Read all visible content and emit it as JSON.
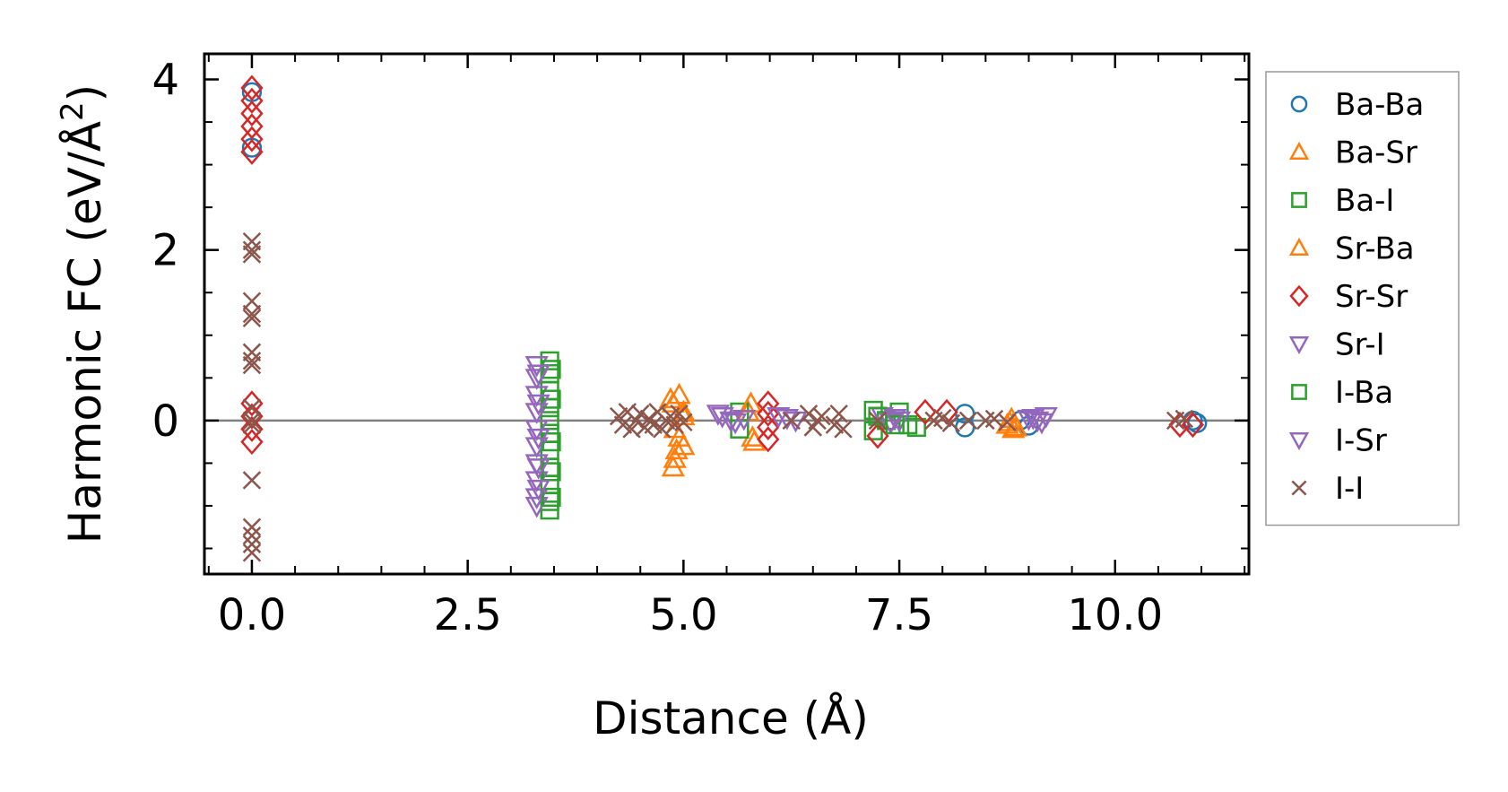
{
  "chart_data": {
    "type": "scatter",
    "xlabel": "Distance (Å)",
    "ylabel_main": "Harmonic FC (eV/Å",
    "ylabel_sup": "2",
    "ylabel_close": ")",
    "xlim": [
      -0.55,
      11.55
    ],
    "ylim": [
      -1.8,
      4.3
    ],
    "xticks": [
      0.0,
      2.5,
      5.0,
      7.5,
      10.0
    ],
    "xtick_labels": [
      "0.0",
      "2.5",
      "5.0",
      "7.5",
      "10.0"
    ],
    "yticks": [
      0,
      2,
      4
    ],
    "ytick_labels": [
      "0",
      "2",
      "4"
    ],
    "reference_line_y": 0,
    "legend_position": "outside-right",
    "series": [
      {
        "name": "Ba-Ba",
        "marker": "circle-open",
        "color": "#1f77b4",
        "points": [
          [
            0.0,
            3.2
          ],
          [
            0.0,
            3.85
          ],
          [
            8.26,
            0.08
          ],
          [
            8.26,
            -0.08
          ],
          [
            8.9,
            0.0
          ],
          [
            9.0,
            -0.06
          ],
          [
            10.9,
            0.0
          ],
          [
            10.95,
            -0.03
          ]
        ]
      },
      {
        "name": "Ba-Sr",
        "marker": "triangle-up-open",
        "color": "#ff7f0e",
        "points": [
          [
            4.85,
            0.25
          ],
          [
            4.9,
            -0.1
          ],
          [
            4.92,
            -0.35
          ],
          [
            4.88,
            -0.55
          ],
          [
            4.95,
            0.3
          ],
          [
            5.0,
            0.1
          ],
          [
            5.0,
            -0.3
          ],
          [
            5.75,
            0.1
          ],
          [
            5.8,
            -0.2
          ],
          [
            8.75,
            -0.05
          ],
          [
            8.8,
            0.02
          ],
          [
            8.85,
            -0.08
          ]
        ]
      },
      {
        "name": "Ba-I",
        "marker": "square-open",
        "color": "#2ca02c",
        "points": [
          [
            3.45,
            0.7
          ],
          [
            3.45,
            0.55
          ],
          [
            3.45,
            0.35
          ],
          [
            3.45,
            0.15
          ],
          [
            3.45,
            0.0
          ],
          [
            3.45,
            -0.15
          ],
          [
            3.45,
            -0.35
          ],
          [
            3.45,
            -0.55
          ],
          [
            3.45,
            -0.75
          ],
          [
            3.45,
            -0.95
          ],
          [
            3.45,
            -1.05
          ],
          [
            5.65,
            0.1
          ],
          [
            5.65,
            -0.1
          ],
          [
            7.2,
            0.12
          ],
          [
            7.2,
            -0.12
          ],
          [
            7.35,
            0.0
          ],
          [
            7.5,
            0.1
          ],
          [
            7.6,
            -0.05
          ],
          [
            7.7,
            -0.08
          ]
        ]
      },
      {
        "name": "Sr-Ba",
        "marker": "triangle-up-open",
        "color": "#ff7f0e",
        "points": [
          [
            4.88,
            0.2
          ],
          [
            4.95,
            -0.2
          ],
          [
            4.9,
            -0.45
          ],
          [
            5.0,
            0.05
          ],
          [
            5.78,
            0.2
          ],
          [
            5.82,
            -0.25
          ],
          [
            8.78,
            -0.02
          ],
          [
            8.82,
            -0.1
          ]
        ]
      },
      {
        "name": "Sr-Sr",
        "marker": "diamond-open",
        "color": "#d62728",
        "points": [
          [
            0.0,
            3.9
          ],
          [
            0.0,
            3.75
          ],
          [
            0.0,
            3.6
          ],
          [
            0.0,
            3.45
          ],
          [
            0.0,
            3.3
          ],
          [
            0.0,
            3.15
          ],
          [
            0.0,
            0.2
          ],
          [
            0.0,
            0.05
          ],
          [
            0.0,
            -0.1
          ],
          [
            0.0,
            -0.25
          ],
          [
            5.98,
            0.2
          ],
          [
            5.98,
            0.08
          ],
          [
            5.98,
            -0.08
          ],
          [
            5.98,
            -0.22
          ],
          [
            7.25,
            -0.18
          ],
          [
            7.8,
            0.1
          ],
          [
            8.05,
            0.1
          ],
          [
            10.75,
            -0.05
          ],
          [
            10.9,
            -0.05
          ]
        ]
      },
      {
        "name": "Sr-I",
        "marker": "triangle-down-open",
        "color": "#9467bd",
        "points": [
          [
            3.3,
            0.65
          ],
          [
            3.3,
            0.5
          ],
          [
            3.3,
            0.3
          ],
          [
            3.3,
            0.1
          ],
          [
            3.3,
            -0.1
          ],
          [
            3.3,
            -0.3
          ],
          [
            3.3,
            -0.5
          ],
          [
            3.3,
            -0.7
          ],
          [
            3.3,
            -0.9
          ],
          [
            3.3,
            -1.0
          ],
          [
            5.4,
            0.08
          ],
          [
            5.55,
            0.0
          ],
          [
            5.7,
            0.02
          ],
          [
            6.1,
            0.05
          ],
          [
            6.3,
            0.0
          ],
          [
            7.3,
            0.05
          ],
          [
            7.4,
            -0.02
          ],
          [
            7.5,
            0.0
          ],
          [
            9.0,
            0.02
          ],
          [
            9.1,
            0.0
          ],
          [
            9.2,
            0.05
          ]
        ]
      },
      {
        "name": "I-Ba",
        "marker": "square-open",
        "color": "#2ca02c",
        "points": [
          [
            3.47,
            0.6
          ],
          [
            3.47,
            0.25
          ],
          [
            3.47,
            -0.25
          ],
          [
            3.47,
            -0.6
          ],
          [
            3.47,
            -0.9
          ],
          [
            7.25,
            0.05
          ],
          [
            7.45,
            -0.05
          ]
        ]
      },
      {
        "name": "I-Sr",
        "marker": "triangle-down-open",
        "color": "#9467bd",
        "points": [
          [
            3.32,
            0.55
          ],
          [
            3.32,
            0.2
          ],
          [
            3.32,
            -0.2
          ],
          [
            3.32,
            -0.55
          ],
          [
            3.32,
            -0.8
          ],
          [
            5.45,
            0.05
          ],
          [
            5.6,
            -0.02
          ],
          [
            6.2,
            0.03
          ],
          [
            7.45,
            0.03
          ],
          [
            9.05,
            0.03
          ],
          [
            9.15,
            -0.02
          ]
        ]
      },
      {
        "name": "I-I",
        "marker": "x",
        "color": "#8c564b",
        "points": [
          [
            0.0,
            2.1
          ],
          [
            0.0,
            2.0
          ],
          [
            0.0,
            1.95
          ],
          [
            0.0,
            1.4
          ],
          [
            0.0,
            1.25
          ],
          [
            0.0,
            1.2
          ],
          [
            0.0,
            0.8
          ],
          [
            0.0,
            0.7
          ],
          [
            0.0,
            0.65
          ],
          [
            0.0,
            0.15
          ],
          [
            0.0,
            0.0
          ],
          [
            0.0,
            -0.05
          ],
          [
            0.0,
            -0.7
          ],
          [
            0.0,
            -1.25
          ],
          [
            0.0,
            -1.35
          ],
          [
            0.0,
            -1.45
          ],
          [
            0.0,
            -1.55
          ],
          [
            4.25,
            0.05
          ],
          [
            4.3,
            -0.05
          ],
          [
            4.35,
            0.1
          ],
          [
            4.4,
            -0.1
          ],
          [
            4.45,
            0.0
          ],
          [
            4.5,
            0.08
          ],
          [
            4.55,
            -0.08
          ],
          [
            4.6,
            0.02
          ],
          [
            4.65,
            -0.05
          ],
          [
            4.7,
            0.1
          ],
          [
            4.75,
            -0.1
          ],
          [
            4.8,
            0.0
          ],
          [
            4.85,
            0.05
          ],
          [
            4.9,
            -0.05
          ],
          [
            4.95,
            0.08
          ],
          [
            5.0,
            -0.02
          ],
          [
            6.25,
            0.0
          ],
          [
            6.45,
            0.08
          ],
          [
            6.5,
            -0.08
          ],
          [
            6.55,
            0.0
          ],
          [
            6.6,
            0.05
          ],
          [
            6.75,
            -0.05
          ],
          [
            6.8,
            0.08
          ],
          [
            6.85,
            -0.1
          ],
          [
            7.25,
            0.0
          ],
          [
            7.9,
            0.0
          ],
          [
            8.0,
            0.03
          ],
          [
            8.1,
            -0.03
          ],
          [
            8.3,
            0.0
          ],
          [
            8.5,
            0.0
          ],
          [
            8.6,
            0.02
          ],
          [
            8.75,
            -0.02
          ],
          [
            10.7,
            0.0
          ],
          [
            10.8,
            0.02
          ]
        ]
      }
    ]
  }
}
